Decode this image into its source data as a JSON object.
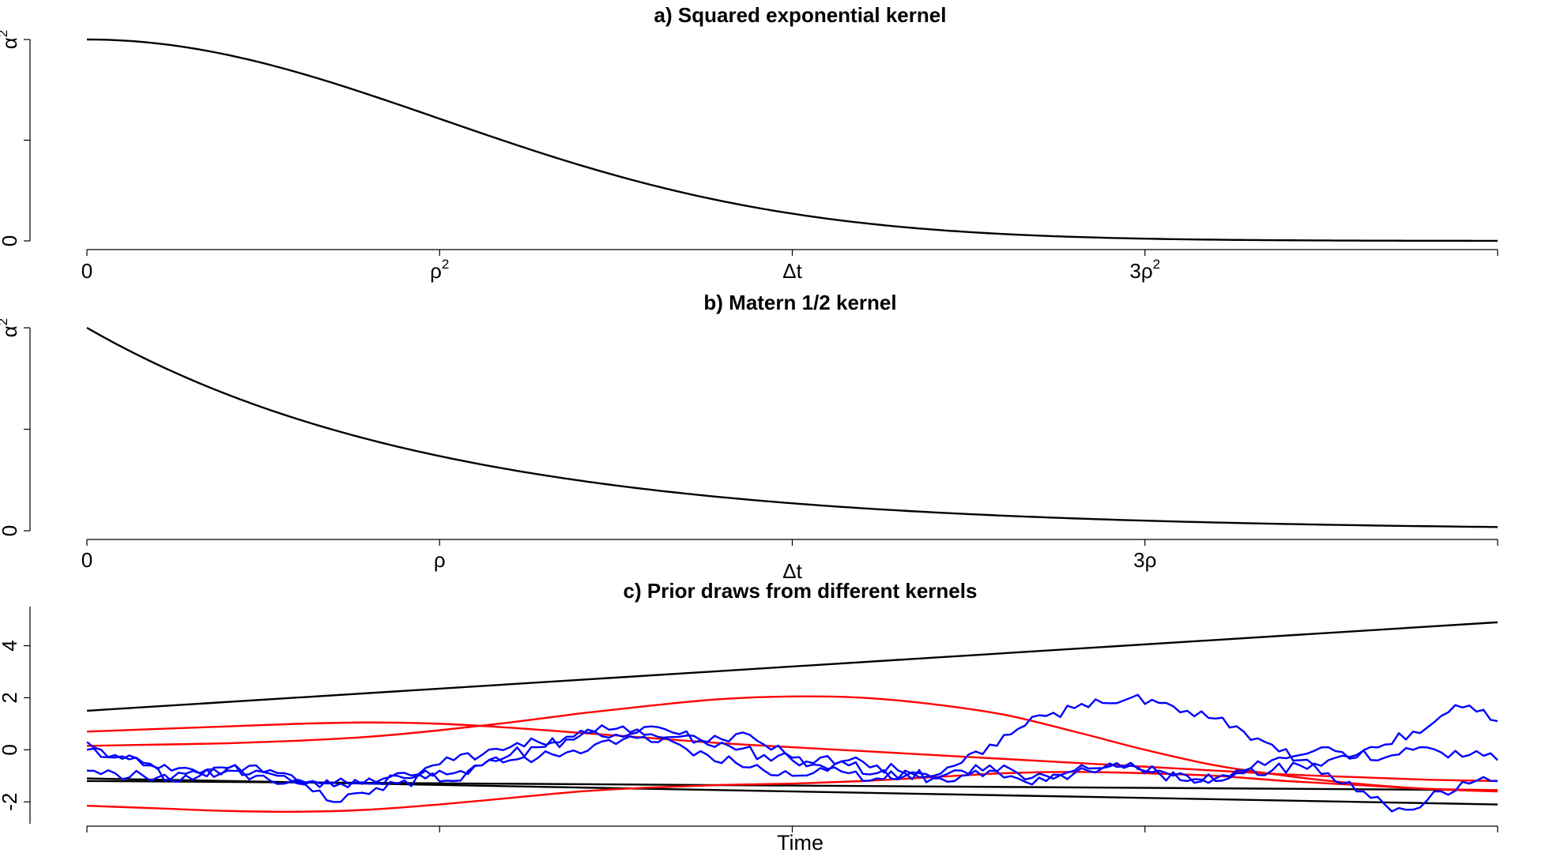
{
  "chart_data": [
    {
      "id": "a",
      "type": "line",
      "title": "a) Squared exponential kernel",
      "xlabel": "",
      "ylabel": "",
      "x_ticks": [
        {
          "value": 0,
          "label": "0",
          "sup": ""
        },
        {
          "value": 1,
          "label": "ρ",
          "sup": "2"
        },
        {
          "value": 2,
          "label": "Δt",
          "sup": ""
        },
        {
          "value": 3,
          "label": "3ρ",
          "sup": "2"
        },
        {
          "value": 4,
          "label": "",
          "sup": ""
        }
      ],
      "y_ticks": [
        {
          "value": 0,
          "label": "0",
          "sup": ""
        },
        {
          "value": 0.5,
          "label": "",
          "sup": ""
        },
        {
          "value": 1,
          "label": "α",
          "sup": "2"
        }
      ],
      "xlim": [
        0,
        4
      ],
      "ylim": [
        0,
        1
      ],
      "series": [
        {
          "color": "#000000",
          "x": [
            0,
            0.25,
            0.5,
            0.75,
            1,
            1.25,
            1.5,
            1.75,
            2,
            2.25,
            2.5,
            2.75,
            3,
            3.25,
            3.5,
            3.75,
            4
          ],
          "y": [
            1,
            0.969,
            0.882,
            0.755,
            0.607,
            0.458,
            0.325,
            0.216,
            0.135,
            0.079,
            0.044,
            0.023,
            0.011,
            0.005,
            0.002,
            0.001,
            0.0003
          ]
        }
      ]
    },
    {
      "id": "b",
      "type": "line",
      "title": "b) Matern 1/2 kernel",
      "xlabel": "",
      "ylabel": "",
      "x_ticks": [
        {
          "value": 0,
          "label": "0",
          "sup": ""
        },
        {
          "value": 1,
          "label": "ρ",
          "sup": ""
        },
        {
          "value": 2,
          "label": "Δt",
          "sup": ""
        },
        {
          "value": 3,
          "label": "3ρ",
          "sup": ""
        },
        {
          "value": 4,
          "label": "",
          "sup": ""
        }
      ],
      "y_ticks": [
        {
          "value": 0,
          "label": "0",
          "sup": ""
        },
        {
          "value": 0.5,
          "label": "",
          "sup": ""
        },
        {
          "value": 1,
          "label": "α",
          "sup": "2"
        }
      ],
      "xlim": [
        0,
        4
      ],
      "ylim": [
        0,
        1
      ],
      "series": [
        {
          "color": "#000000",
          "x": [
            0,
            0.25,
            0.5,
            0.75,
            1,
            1.25,
            1.5,
            1.75,
            2,
            2.25,
            2.5,
            2.75,
            3,
            3.25,
            3.5,
            3.75,
            4
          ],
          "y": [
            1,
            0.779,
            0.607,
            0.472,
            0.368,
            0.287,
            0.223,
            0.174,
            0.135,
            0.105,
            0.082,
            0.064,
            0.05,
            0.039,
            0.03,
            0.024,
            0.018
          ]
        }
      ]
    },
    {
      "id": "c",
      "type": "line",
      "title": "c) Prior draws from different kernels",
      "xlabel": "Time",
      "ylabel": "",
      "x_ticks": [
        {
          "value": 0,
          "label": ""
        },
        {
          "value": 25,
          "label": ""
        },
        {
          "value": 50,
          "label": ""
        },
        {
          "value": 75,
          "label": ""
        },
        {
          "value": 100,
          "label": ""
        }
      ],
      "y_ticks": [
        {
          "value": -2,
          "label": "-2"
        },
        {
          "value": 0,
          "label": "0"
        },
        {
          "value": 2,
          "label": "2"
        },
        {
          "value": 4,
          "label": "4"
        }
      ],
      "xlim": [
        0,
        100
      ],
      "ylim": [
        -2.6,
        5.2
      ],
      "series": [
        {
          "color": "#000000",
          "x": [
            0,
            100
          ],
          "y": [
            1.5,
            4.9
          ]
        },
        {
          "color": "#000000",
          "x": [
            0,
            100
          ],
          "y": [
            -1.1,
            -2.1
          ]
        },
        {
          "color": "#000000",
          "x": [
            0,
            100
          ],
          "y": [
            -1.2,
            -1.55
          ]
        },
        {
          "color": "#ff0000",
          "x": [
            0,
            5,
            10,
            15,
            20,
            25,
            30,
            35,
            40,
            45,
            50,
            55,
            60,
            65,
            70,
            75,
            80,
            85,
            90,
            95,
            100
          ],
          "y": [
            0.7,
            0.8,
            0.9,
            1.0,
            1.05,
            1.0,
            0.85,
            0.65,
            0.45,
            0.25,
            0.1,
            -0.05,
            -0.2,
            -0.35,
            -0.5,
            -0.65,
            -0.8,
            -0.95,
            -1.05,
            -1.15,
            -1.2
          ]
        },
        {
          "color": "#ff0000",
          "x": [
            0,
            5,
            10,
            15,
            20,
            25,
            30,
            35,
            40,
            45,
            50,
            55,
            60,
            65,
            70,
            75,
            80,
            85,
            90,
            95,
            100
          ],
          "y": [
            0.15,
            0.2,
            0.25,
            0.35,
            0.5,
            0.75,
            1.05,
            1.4,
            1.7,
            1.95,
            2.05,
            2.0,
            1.75,
            1.35,
            0.7,
            0.0,
            -0.6,
            -1.0,
            -1.3,
            -1.5,
            -1.6
          ]
        },
        {
          "color": "#ff0000",
          "x": [
            0,
            5,
            10,
            15,
            20,
            25,
            30,
            35,
            40,
            45,
            50,
            55,
            60,
            65,
            70,
            75,
            80,
            85,
            90,
            95,
            100
          ],
          "y": [
            -2.15,
            -2.25,
            -2.35,
            -2.38,
            -2.3,
            -2.1,
            -1.85,
            -1.6,
            -1.45,
            -1.35,
            -1.3,
            -1.2,
            -1.05,
            -0.9,
            -0.85,
            -0.9,
            -1.0,
            -1.2,
            -1.35,
            -1.5,
            -1.55
          ]
        },
        {
          "color": "#0000ff",
          "x": [
            0,
            2,
            4,
            6,
            8,
            10,
            12,
            14,
            16,
            18,
            20,
            22,
            24,
            26,
            28,
            30,
            32,
            34,
            36,
            38,
            40,
            42,
            44,
            46,
            48,
            50,
            52,
            54,
            56,
            58,
            60,
            62,
            64,
            66,
            68,
            70,
            72,
            74,
            76,
            78,
            80,
            82,
            84,
            86,
            88,
            90,
            92,
            94,
            96,
            98,
            100
          ],
          "y": [
            0.3,
            -0.2,
            -0.6,
            -1.1,
            -0.9,
            -0.7,
            -1.0,
            -1.3,
            -1.6,
            -2.0,
            -1.7,
            -1.3,
            -1.1,
            -1.2,
            -0.6,
            -0.2,
            0.1,
            0.4,
            0.7,
            0.5,
            0.9,
            0.6,
            0.3,
            0.6,
            0.2,
            -0.3,
            -0.6,
            -0.9,
            -1.1,
            -0.8,
            -1.0,
            -0.5,
            0.2,
            0.8,
            1.3,
            1.6,
            1.8,
            2.0,
            1.8,
            1.5,
            1.2,
            0.7,
            0.2,
            -0.4,
            -0.9,
            -1.6,
            -2.1,
            -2.3,
            -1.6,
            -1.3,
            -1.2
          ]
        },
        {
          "color": "#0000ff",
          "x": [
            0,
            2,
            4,
            6,
            8,
            10,
            12,
            14,
            16,
            18,
            20,
            22,
            24,
            26,
            28,
            30,
            32,
            34,
            36,
            38,
            40,
            42,
            44,
            46,
            48,
            50,
            52,
            54,
            56,
            58,
            60,
            62,
            64,
            66,
            68,
            70,
            72,
            74,
            76,
            78,
            80,
            82,
            84,
            86,
            88,
            90,
            92,
            94,
            96,
            98,
            100
          ],
          "y": [
            -0.8,
            -0.9,
            -1.0,
            -1.2,
            -1.0,
            -0.8,
            -0.6,
            -0.9,
            -1.2,
            -1.3,
            -1.1,
            -0.9,
            -0.7,
            -0.4,
            -0.2,
            0.1,
            0.3,
            0.5,
            0.7,
            0.9,
            0.6,
            0.2,
            -0.2,
            -0.5,
            -0.8,
            -1.0,
            -0.7,
            -0.4,
            -0.6,
            -0.9,
            -1.1,
            -1.0,
            -0.8,
            -1.1,
            -1.2,
            -0.9,
            -0.7,
            -0.6,
            -0.9,
            -1.2,
            -1.1,
            -0.8,
            -0.4,
            -0.2,
            0.1,
            -0.3,
            0.2,
            0.7,
            1.3,
            1.7,
            1.1
          ]
        },
        {
          "color": "#0000ff",
          "x": [
            0,
            2,
            4,
            6,
            8,
            10,
            12,
            14,
            16,
            18,
            20,
            22,
            24,
            26,
            28,
            30,
            32,
            34,
            36,
            38,
            40,
            42,
            44,
            46,
            48,
            50,
            52,
            54,
            56,
            58,
            60,
            62,
            64,
            66,
            68,
            70,
            72,
            74,
            76,
            78,
            80,
            82,
            84,
            86,
            88,
            90,
            92,
            94,
            96,
            98,
            100
          ],
          "y": [
            0.0,
            -0.3,
            -0.5,
            -0.8,
            -0.9,
            -0.7,
            -0.8,
            -1.0,
            -1.2,
            -1.1,
            -1.3,
            -1.0,
            -0.8,
            -0.9,
            -0.6,
            -0.4,
            -0.3,
            -0.1,
            0.2,
            0.4,
            0.3,
            0.5,
            0.2,
            0.0,
            -0.2,
            -0.4,
            -0.3,
            -0.6,
            -0.9,
            -1.0,
            -1.1,
            -0.8,
            -0.6,
            -0.9,
            -1.0,
            -0.8,
            -0.7,
            -0.5,
            -0.8,
            -1.0,
            -1.2,
            -0.9,
            -0.8,
            -0.6,
            -0.4,
            -0.2,
            -0.3,
            0.0,
            -0.1,
            -0.2,
            -0.4
          ]
        }
      ]
    }
  ]
}
